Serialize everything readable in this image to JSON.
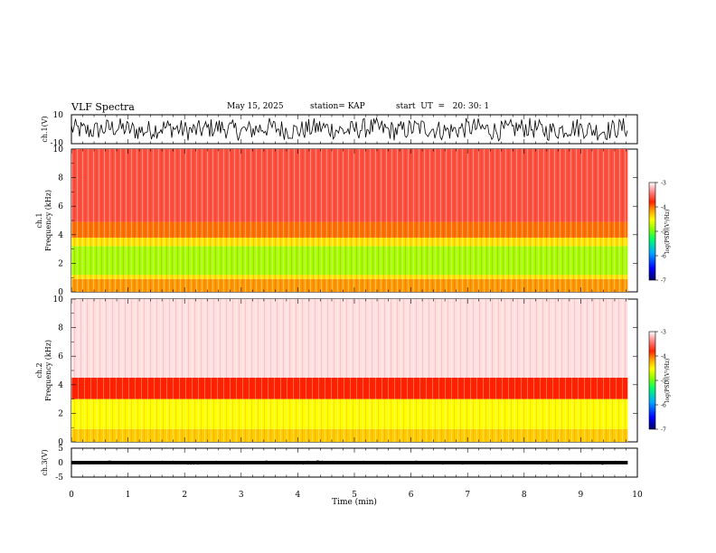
{
  "header": {
    "title": "VLF Spectra",
    "date": "May 15, 2025",
    "station": "station= KAP",
    "start_time": "start  UT  =   20: 30: 1"
  },
  "chart_data": {
    "type": "heatmap",
    "title": "VLF Spectra",
    "xlabel": "Time (min)",
    "xlim": [
      0,
      10
    ],
    "xticks": [
      "0",
      "1",
      "2",
      "3",
      "4",
      "5",
      "6",
      "7",
      "8",
      "9",
      "10"
    ],
    "data_end_min": 9.83,
    "panels": [
      {
        "name": "ch1-waveform",
        "type": "line",
        "ylabel": "ch.1(V)",
        "ylim": [
          -10,
          10
        ],
        "yticks": [
          "10",
          "-10"
        ],
        "amplitude_approx": 7
      },
      {
        "name": "ch1-spectrogram",
        "type": "heatmap",
        "ylabel": "ch.1\nFrequency (kHz)",
        "ylim": [
          0,
          10
        ],
        "yticks": [
          "0",
          "2",
          "4",
          "6",
          "8",
          "10"
        ],
        "colorbar": {
          "label": "log(PSD)(V²/Hz)",
          "ticks": [
            "-3",
            "-4",
            "-5",
            "-6",
            "-7"
          ],
          "range": [
            -7,
            -3
          ]
        },
        "bands": [
          {
            "from_khz": 0.0,
            "to_khz": 0.9,
            "level": -4.1
          },
          {
            "from_khz": 0.9,
            "to_khz": 1.2,
            "level": -4.4
          },
          {
            "from_khz": 1.2,
            "to_khz": 3.2,
            "level": -4.8
          },
          {
            "from_khz": 3.2,
            "to_khz": 3.8,
            "level": -4.4
          },
          {
            "from_khz": 3.8,
            "to_khz": 4.9,
            "level": -4.0
          },
          {
            "from_khz": 4.9,
            "to_khz": 10.0,
            "level": -3.6
          }
        ]
      },
      {
        "name": "ch2-spectrogram",
        "type": "heatmap",
        "ylabel": "ch.2\nFrequency (kHz)",
        "ylim": [
          0,
          10
        ],
        "yticks": [
          "0",
          "2",
          "4",
          "6",
          "8",
          "10"
        ],
        "colorbar": {
          "label": "log(PSD)(V²/Hz)",
          "ticks": [
            "-3",
            "-4",
            "-5",
            "-6",
            "-7"
          ],
          "range": [
            -7,
            -3
          ]
        },
        "bands": [
          {
            "from_khz": 0.0,
            "to_khz": 0.9,
            "level": -4.3
          },
          {
            "from_khz": 0.9,
            "to_khz": 3.0,
            "level": -4.5
          },
          {
            "from_khz": 3.0,
            "to_khz": 4.5,
            "level": -3.8
          },
          {
            "from_khz": 4.5,
            "to_khz": 10.0,
            "level": -3.1
          }
        ]
      },
      {
        "name": "ch3-waveform",
        "type": "line",
        "ylabel": "ch.3(V)",
        "ylim": [
          -5,
          5
        ],
        "yticks": [
          "5",
          "0",
          "-5"
        ],
        "amplitude_approx": 0.6
      }
    ]
  }
}
